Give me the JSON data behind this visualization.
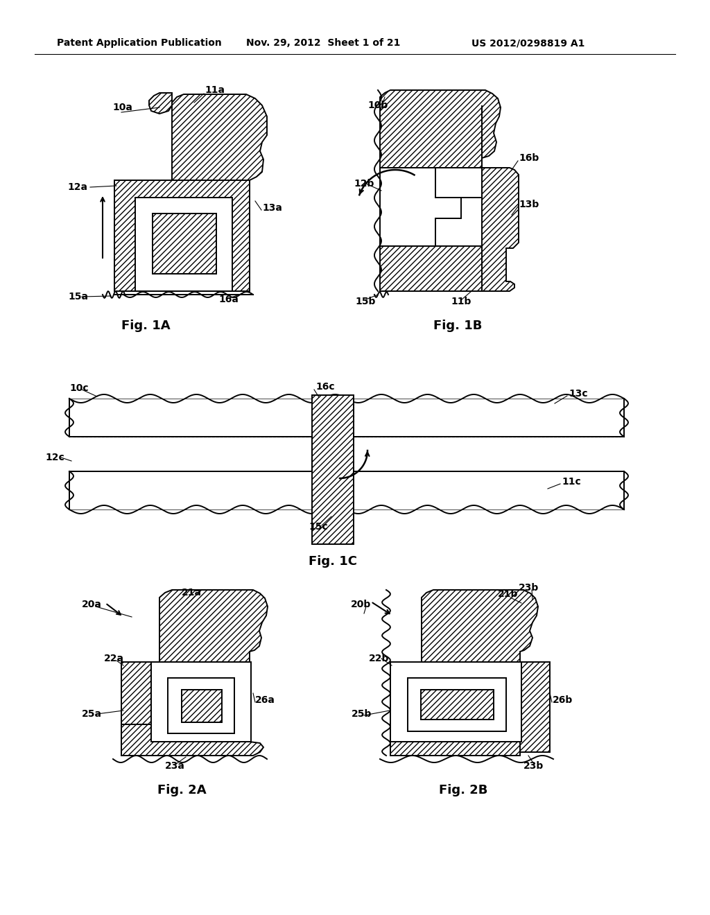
{
  "bg_color": "#ffffff",
  "header_text1": "Patent Application Publication",
  "header_text2": "Nov. 29, 2012  Sheet 1 of 21",
  "header_text3": "US 2012/0298819 A1"
}
